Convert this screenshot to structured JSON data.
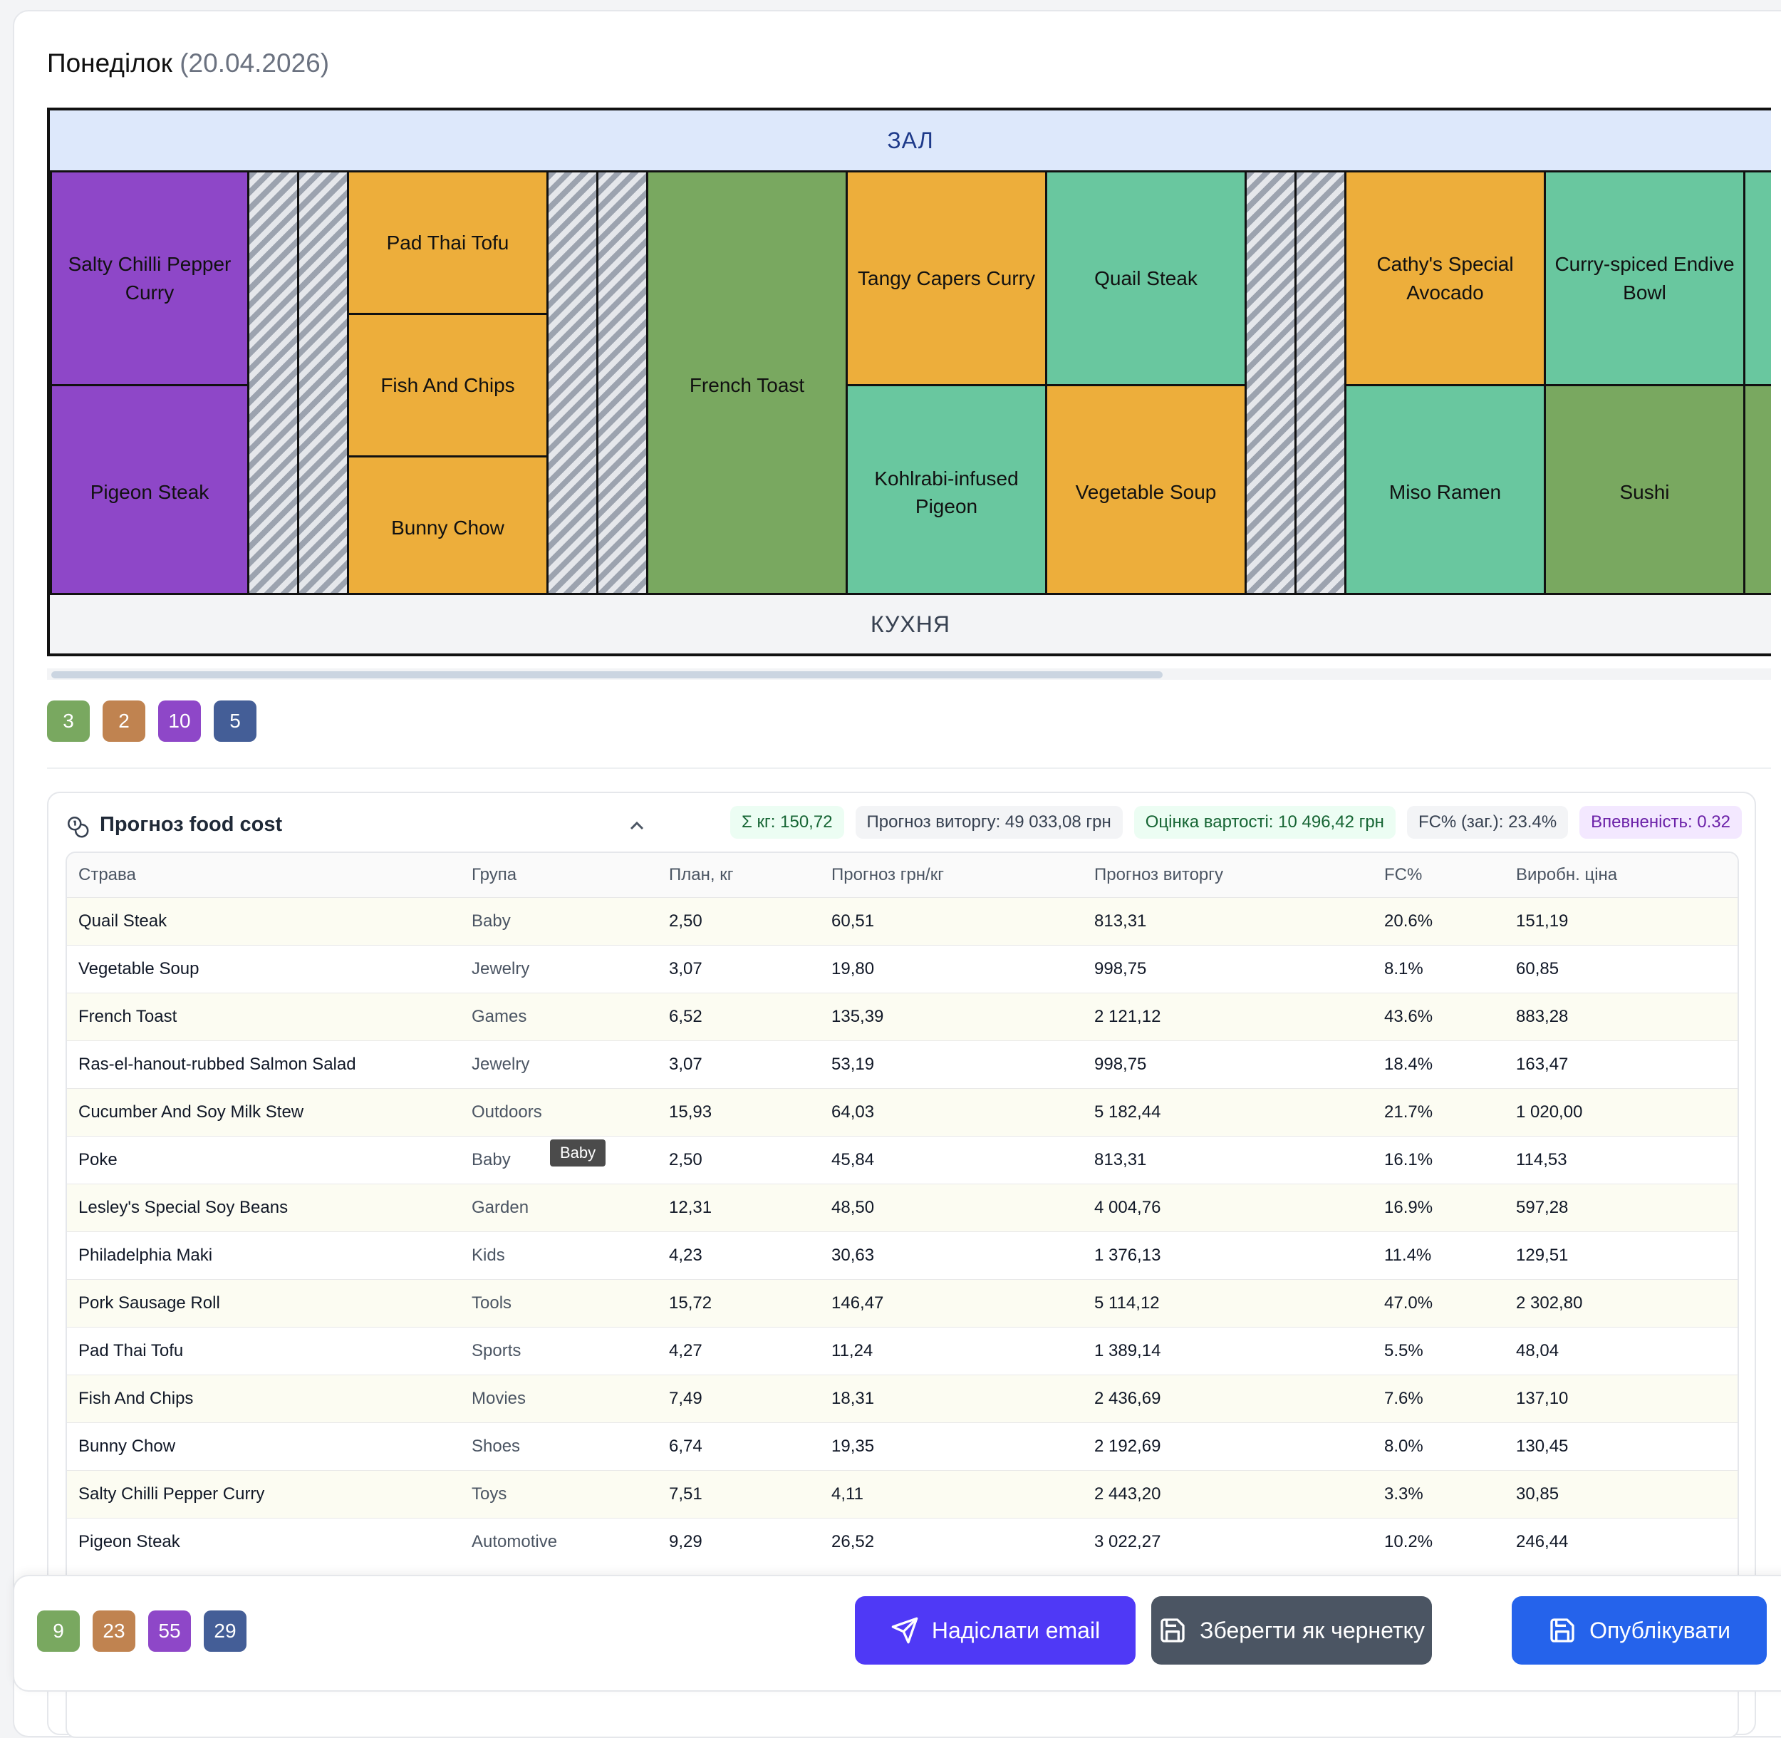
{
  "day": {
    "name": "Понеділок",
    "date": "(20.04.2026)"
  },
  "floor": {
    "hall_label": "ЗАЛ",
    "kitchen_label": "КУХНЯ",
    "cells": {
      "c1a": "Salty Chilli Pepper Curry",
      "c1b": "Pigeon Steak",
      "c3a": "Pad Thai Tofu",
      "c3b": "Fish And Chips",
      "c3c": "Bunny Chow",
      "c5": "French Toast",
      "c6a": "Tangy Capers Curry",
      "c6b": "Kohlrabi-infused Pigeon",
      "c7a": "Quail Steak",
      "c7b": "Vegetable Soup",
      "c9a": "Cathy's Special Avocado",
      "c9b": "Miso Ramen",
      "c10a": "Curry-spiced Endive Bowl",
      "c10b": "Sushi"
    },
    "colors": {
      "purple": "#8e47c8",
      "orange": "#edae3b",
      "green": "#79a860",
      "teal": "#69c79f"
    }
  },
  "badges_top": [
    "3",
    "2",
    "10",
    "5"
  ],
  "food_cost": {
    "title": "Прогноз food cost",
    "chips": {
      "sum_kg": "Σ кг: 150,72",
      "revenue": "Прогноз виторгу: 49 033,08 грн",
      "cost": "Оцінка вартості: 10 496,42 грн",
      "fc": "FC% (заг.): 23.4%",
      "confidence": "Впевненість: 0.32"
    },
    "columns": [
      "Страва",
      "Група",
      "План, кг",
      "Прогноз грн/кг",
      "Прогноз виторгу",
      "FC%",
      "Виробн. ціна"
    ],
    "rows": [
      [
        "Quail Steak",
        "Baby",
        "2,50",
        "60,51",
        "813,31",
        "20.6%",
        "151,19"
      ],
      [
        "Vegetable Soup",
        "Jewelry",
        "3,07",
        "19,80",
        "998,75",
        "8.1%",
        "60,85"
      ],
      [
        "French Toast",
        "Games",
        "6,52",
        "135,39",
        "2 121,12",
        "43.6%",
        "883,28"
      ],
      [
        "Ras-el-hanout-rubbed Salmon Salad",
        "Jewelry",
        "3,07",
        "53,19",
        "998,75",
        "18.4%",
        "163,47"
      ],
      [
        "Cucumber And Soy Milk Stew",
        "Outdoors",
        "15,93",
        "64,03",
        "5 182,44",
        "21.7%",
        "1 020,00"
      ],
      [
        "Poke",
        "Baby",
        "2,50",
        "45,84",
        "813,31",
        "16.1%",
        "114,53"
      ],
      [
        "Lesley's Special Soy Beans",
        "Garden",
        "12,31",
        "48,50",
        "4 004,76",
        "16.9%",
        "597,28"
      ],
      [
        "Philadelphia Maki",
        "Kids",
        "4,23",
        "30,63",
        "1 376,13",
        "11.4%",
        "129,51"
      ],
      [
        "Pork Sausage Roll",
        "Tools",
        "15,72",
        "146,47",
        "5 114,12",
        "47.0%",
        "2 302,80"
      ],
      [
        "Pad Thai Tofu",
        "Sports",
        "4,27",
        "11,24",
        "1 389,14",
        "5.5%",
        "48,04"
      ],
      [
        "Fish And Chips",
        "Movies",
        "7,49",
        "18,31",
        "2 436,69",
        "7.6%",
        "137,10"
      ],
      [
        "Bunny Chow",
        "Shoes",
        "6,74",
        "19,35",
        "2 192,69",
        "8.0%",
        "130,45"
      ],
      [
        "Salty Chilli Pepper Curry",
        "Toys",
        "7,51",
        "4,11",
        "2 443,20",
        "3.3%",
        "30,85"
      ],
      [
        "Pigeon Steak",
        "Automotive",
        "9,29",
        "26,52",
        "3 022,27",
        "10.2%",
        "246,44"
      ]
    ],
    "tooltip": "Baby"
  },
  "footer": {
    "badges": [
      "9",
      "23",
      "55",
      "29"
    ],
    "send_email": "Надіслати email",
    "save_draft": "Зберегти як чернетку",
    "publish": "Опублікувати"
  }
}
